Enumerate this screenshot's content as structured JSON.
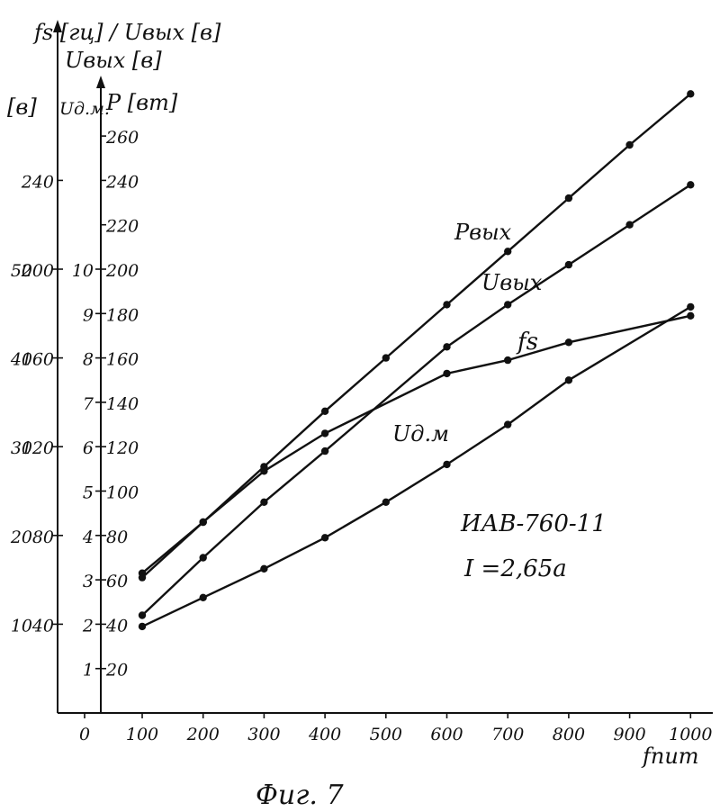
{
  "chart_data": {
    "type": "line",
    "caption": "Фиг. 7",
    "annotations": [
      "ИАВ-760-11",
      "I =2,65а"
    ],
    "x_axis": {
      "label": "fпит",
      "range": [
        0,
        1000
      ],
      "ticks": [
        0,
        100,
        200,
        300,
        400,
        500,
        600,
        700,
        800,
        900,
        1000
      ]
    },
    "y_axes": [
      {
        "label": "[в]",
        "range": [
          0,
          60
        ],
        "ticks": [
          10,
          20,
          30,
          40,
          50
        ]
      },
      {
        "label": "Uд.м.",
        "range": [
          0,
          260
        ],
        "ticks": [
          40,
          80,
          120,
          160,
          200,
          240
        ]
      },
      {
        "label": "fs [гц] / Uвых [в]",
        "range": [
          0,
          13
        ],
        "ticks": [
          1,
          2,
          3,
          4,
          5,
          6,
          7,
          8,
          9,
          10
        ]
      },
      {
        "label": "P [вт]",
        "range": [
          0,
          260
        ],
        "ticks": [
          20,
          40,
          60,
          80,
          100,
          120,
          140,
          160,
          180,
          200,
          220,
          240,
          260
        ]
      }
    ],
    "x": [
      100,
      200,
      300,
      400,
      500,
      600,
      700,
      800,
      900,
      1000
    ],
    "series": [
      {
        "name": "Pвых",
        "axis": "P [вт]",
        "x": [
          100,
          200,
          300,
          400,
          500,
          600,
          700,
          800,
          900,
          1000
        ],
        "values": [
          63,
          86,
          111,
          136,
          160,
          184,
          208,
          232,
          256,
          279
        ]
      },
      {
        "name": "Uвых",
        "axis": "fs [гц] / Uвых [в]",
        "x": [
          100,
          200,
          300,
          400,
          500,
          600,
          700,
          800,
          900,
          1000
        ],
        "values": [
          2.2,
          3.5,
          4.75,
          5.9,
          null,
          8.25,
          9.2,
          10.1,
          11.0,
          11.9
        ]
      },
      {
        "name": "fs",
        "axis": "fs [гц] / Uвых [в]",
        "x": [
          100,
          200,
          300,
          400,
          600,
          700,
          800,
          1000
        ],
        "values": [
          3.05,
          4.3,
          5.45,
          6.3,
          7.65,
          7.95,
          8.35,
          8.95
        ]
      },
      {
        "name": "Uд.м",
        "axis": "fs [гц] / Uвых [в]",
        "x": [
          100,
          200,
          300,
          400,
          500,
          600,
          700,
          800,
          1000
        ],
        "values": [
          1.95,
          2.6,
          3.25,
          3.95,
          4.75,
          5.6,
          6.5,
          7.5,
          9.15
        ]
      }
    ]
  }
}
